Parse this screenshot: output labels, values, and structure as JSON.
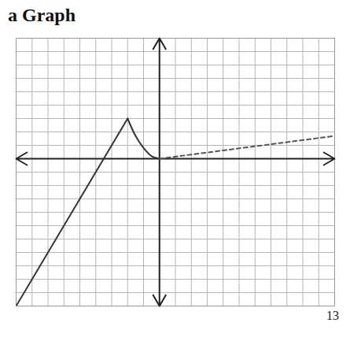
{
  "chart_data": {
    "type": "line",
    "title": "a Graph",
    "caption": "13",
    "xlim": [
      -9,
      11
    ],
    "ylim": [
      -11,
      9
    ],
    "xticks": [
      -9,
      -8,
      -7,
      -6,
      -5,
      -4,
      -3,
      -2,
      -1,
      0,
      1,
      2,
      3,
      4,
      5,
      6,
      7,
      8,
      9,
      10,
      11
    ],
    "yticks": [
      -11,
      -10,
      -9,
      -8,
      -7,
      -6,
      -5,
      -4,
      -3,
      -2,
      -1,
      0,
      1,
      2,
      3,
      4,
      5,
      6,
      7,
      8,
      9
    ],
    "grid": true,
    "tick_labels": false,
    "series": [
      {
        "color": "#333333",
        "line_style": "solid",
        "x": [
          -9,
          -2
        ],
        "values": [
          -11,
          3
        ]
      },
      {
        "color": "#333333",
        "line_style": "solid",
        "x": [
          -2,
          -1.5,
          -1,
          -0.5,
          0
        ],
        "values": [
          3,
          1.7,
          0.8,
          0.2,
          0
        ]
      },
      {
        "color": "#555555",
        "line_style": "dashed",
        "x": [
          0,
          11
        ],
        "values": [
          0,
          1.7
        ]
      }
    ]
  }
}
